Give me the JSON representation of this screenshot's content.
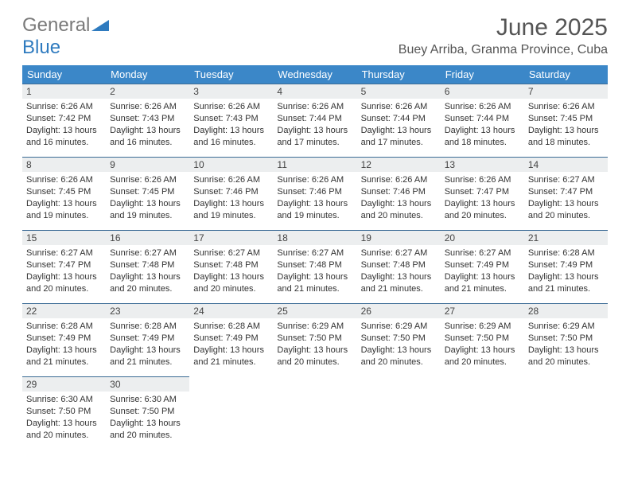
{
  "logo": {
    "text1": "General",
    "text2": "Blue"
  },
  "title": "June 2025",
  "location": "Buey Arriba, Granma Province, Cuba",
  "colors": {
    "header_bg": "#3b87c8",
    "header_text": "#ffffff",
    "daynum_bg": "#eceeef",
    "border_top": "#3b6b95",
    "logo_gray": "#7a7a7a",
    "logo_blue": "#2f7bbf"
  },
  "weekdays": [
    "Sunday",
    "Monday",
    "Tuesday",
    "Wednesday",
    "Thursday",
    "Friday",
    "Saturday"
  ],
  "days": [
    {
      "n": "1",
      "sr": "6:26 AM",
      "ss": "7:42 PM",
      "dl": "13 hours and 16 minutes."
    },
    {
      "n": "2",
      "sr": "6:26 AM",
      "ss": "7:43 PM",
      "dl": "13 hours and 16 minutes."
    },
    {
      "n": "3",
      "sr": "6:26 AM",
      "ss": "7:43 PM",
      "dl": "13 hours and 16 minutes."
    },
    {
      "n": "4",
      "sr": "6:26 AM",
      "ss": "7:44 PM",
      "dl": "13 hours and 17 minutes."
    },
    {
      "n": "5",
      "sr": "6:26 AM",
      "ss": "7:44 PM",
      "dl": "13 hours and 17 minutes."
    },
    {
      "n": "6",
      "sr": "6:26 AM",
      "ss": "7:44 PM",
      "dl": "13 hours and 18 minutes."
    },
    {
      "n": "7",
      "sr": "6:26 AM",
      "ss": "7:45 PM",
      "dl": "13 hours and 18 minutes."
    },
    {
      "n": "8",
      "sr": "6:26 AM",
      "ss": "7:45 PM",
      "dl": "13 hours and 19 minutes."
    },
    {
      "n": "9",
      "sr": "6:26 AM",
      "ss": "7:45 PM",
      "dl": "13 hours and 19 minutes."
    },
    {
      "n": "10",
      "sr": "6:26 AM",
      "ss": "7:46 PM",
      "dl": "13 hours and 19 minutes."
    },
    {
      "n": "11",
      "sr": "6:26 AM",
      "ss": "7:46 PM",
      "dl": "13 hours and 19 minutes."
    },
    {
      "n": "12",
      "sr": "6:26 AM",
      "ss": "7:46 PM",
      "dl": "13 hours and 20 minutes."
    },
    {
      "n": "13",
      "sr": "6:26 AM",
      "ss": "7:47 PM",
      "dl": "13 hours and 20 minutes."
    },
    {
      "n": "14",
      "sr": "6:27 AM",
      "ss": "7:47 PM",
      "dl": "13 hours and 20 minutes."
    },
    {
      "n": "15",
      "sr": "6:27 AM",
      "ss": "7:47 PM",
      "dl": "13 hours and 20 minutes."
    },
    {
      "n": "16",
      "sr": "6:27 AM",
      "ss": "7:48 PM",
      "dl": "13 hours and 20 minutes."
    },
    {
      "n": "17",
      "sr": "6:27 AM",
      "ss": "7:48 PM",
      "dl": "13 hours and 20 minutes."
    },
    {
      "n": "18",
      "sr": "6:27 AM",
      "ss": "7:48 PM",
      "dl": "13 hours and 21 minutes."
    },
    {
      "n": "19",
      "sr": "6:27 AM",
      "ss": "7:48 PM",
      "dl": "13 hours and 21 minutes."
    },
    {
      "n": "20",
      "sr": "6:27 AM",
      "ss": "7:49 PM",
      "dl": "13 hours and 21 minutes."
    },
    {
      "n": "21",
      "sr": "6:28 AM",
      "ss": "7:49 PM",
      "dl": "13 hours and 21 minutes."
    },
    {
      "n": "22",
      "sr": "6:28 AM",
      "ss": "7:49 PM",
      "dl": "13 hours and 21 minutes."
    },
    {
      "n": "23",
      "sr": "6:28 AM",
      "ss": "7:49 PM",
      "dl": "13 hours and 21 minutes."
    },
    {
      "n": "24",
      "sr": "6:28 AM",
      "ss": "7:49 PM",
      "dl": "13 hours and 21 minutes."
    },
    {
      "n": "25",
      "sr": "6:29 AM",
      "ss": "7:50 PM",
      "dl": "13 hours and 20 minutes."
    },
    {
      "n": "26",
      "sr": "6:29 AM",
      "ss": "7:50 PM",
      "dl": "13 hours and 20 minutes."
    },
    {
      "n": "27",
      "sr": "6:29 AM",
      "ss": "7:50 PM",
      "dl": "13 hours and 20 minutes."
    },
    {
      "n": "28",
      "sr": "6:29 AM",
      "ss": "7:50 PM",
      "dl": "13 hours and 20 minutes."
    },
    {
      "n": "29",
      "sr": "6:30 AM",
      "ss": "7:50 PM",
      "dl": "13 hours and 20 minutes."
    },
    {
      "n": "30",
      "sr": "6:30 AM",
      "ss": "7:50 PM",
      "dl": "13 hours and 20 minutes."
    }
  ],
  "labels": {
    "sunrise": "Sunrise:",
    "sunset": "Sunset:",
    "daylight": "Daylight:"
  }
}
